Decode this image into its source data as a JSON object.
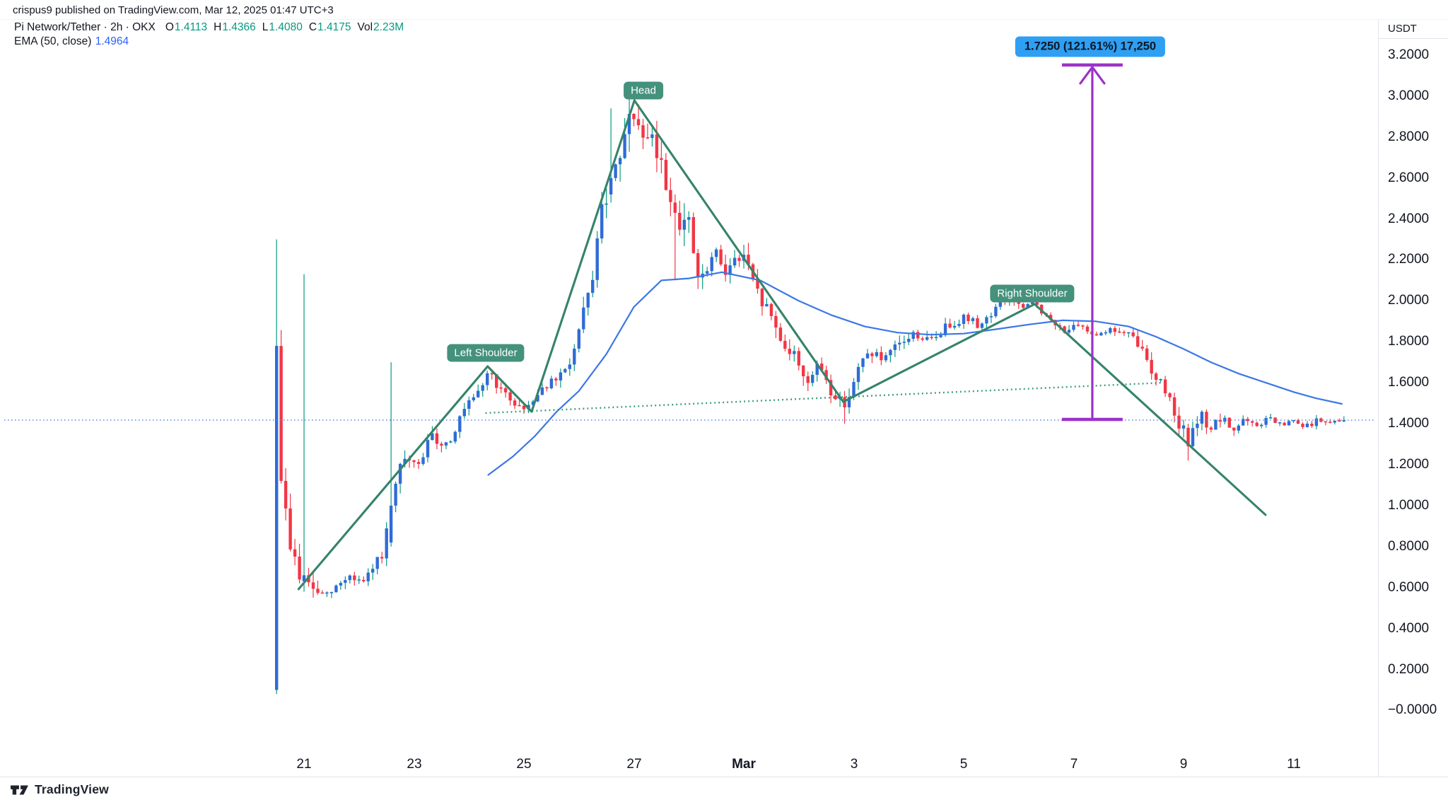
{
  "attribution": "crispus9 published on TradingView.com, Mar 12, 2025 01:47 UTC+3",
  "legend": {
    "symbol_line": "Pi Network/Tether · 2h · OKX",
    "ohlc": [
      {
        "label": "O",
        "value": "1.4113"
      },
      {
        "label": "H",
        "value": "1.4366"
      },
      {
        "label": "L",
        "value": "1.4080"
      },
      {
        "label": "C",
        "value": "1.4175"
      }
    ],
    "volume_label": "Vol",
    "volume_value": "2.23M",
    "ema_label": "EMA (50, close)",
    "ema_value": "1.4964"
  },
  "annotations": {
    "left_shoulder": {
      "text": "Left Shoulder",
      "day": 4.3,
      "price": 1.745
    },
    "head": {
      "text": "Head",
      "day": 7.17,
      "price": 3.027
    },
    "right_shoulder": {
      "text": "Right Shoulder",
      "day": 14.25,
      "price": 2.036
    },
    "measure_label": {
      "text": "1.7250 (121.61%) 17,250",
      "day": 15.3,
      "price": 3.241
    }
  },
  "footer": {
    "logo_text": "TradingView"
  },
  "colors": {
    "text_dark": "#131722",
    "axis_line": "#e0e3eb",
    "up_body": "#2f6bd8",
    "up_wick": "#089981",
    "down": "#f23645",
    "ema_blue": "#3b77e6",
    "price_line_blue": "#5d82e6",
    "trend_green": "#35836b",
    "neckline_green": "#2f9873",
    "purple": "#9c31c9",
    "label_green": "#44917c",
    "measure_bg": "#2e9ff2",
    "legend_teal": "#089981",
    "legend_blue": "#2962ff"
  },
  "chart_data": {
    "type": "candlestick",
    "title": "Pi Network/Tether",
    "timeframe": "2h",
    "exchange": "OKX",
    "quote": "USDT",
    "grid": "none",
    "legend_position": "top-left",
    "last_close": 1.4175,
    "price_line": 1.4175,
    "y_axis": {
      "price_at_top_edge": 3.3727,
      "price_at_bottom_edge": -0.3233,
      "ticks": [
        {
          "label": "3.2000",
          "value": 3.2
        },
        {
          "label": "3.0000",
          "value": 3.0
        },
        {
          "label": "2.8000",
          "value": 2.8
        },
        {
          "label": "2.6000",
          "value": 2.6
        },
        {
          "label": "2.4000",
          "value": 2.4
        },
        {
          "label": "2.2000",
          "value": 2.2
        },
        {
          "label": "2.0000",
          "value": 2.0
        },
        {
          "label": "1.8000",
          "value": 1.8
        },
        {
          "label": "1.6000",
          "value": 1.6
        },
        {
          "label": "1.4000",
          "value": 1.4
        },
        {
          "label": "1.2000",
          "value": 1.2
        },
        {
          "label": "1.0000",
          "value": 1.0
        },
        {
          "label": "0.8000",
          "value": 0.8
        },
        {
          "label": "0.6000",
          "value": 0.6
        },
        {
          "label": "0.4000",
          "value": 0.4
        },
        {
          "label": "0.2000",
          "value": 0.2
        },
        {
          "label": "−0.0000",
          "value": 0.0
        }
      ]
    },
    "x_axis": {
      "day_at_left_edge": -4.531,
      "day_at_right_edge": 20.524,
      "labels": [
        {
          "text": "21",
          "day": 1,
          "bold": false
        },
        {
          "text": "23",
          "day": 3,
          "bold": false
        },
        {
          "text": "25",
          "day": 5,
          "bold": false
        },
        {
          "text": "27",
          "day": 7,
          "bold": false
        },
        {
          "text": "Mar",
          "day": 9,
          "bold": true
        },
        {
          "text": "3",
          "day": 11,
          "bold": false
        },
        {
          "text": "5",
          "day": 13,
          "bold": false
        },
        {
          "text": "7",
          "day": 15,
          "bold": false
        },
        {
          "text": "9",
          "day": 17,
          "bold": false
        },
        {
          "text": "11",
          "day": 19,
          "bold": false
        }
      ]
    },
    "candles": {
      "start_day": 0.5,
      "end_day": 19.9167,
      "per_day": 12,
      "close_path": [
        [
          0.5,
          1.78
        ],
        [
          0.58,
          1.17
        ],
        [
          0.7,
          0.86
        ],
        [
          0.95,
          0.63
        ],
        [
          1.4,
          0.55
        ],
        [
          1.8,
          0.66
        ],
        [
          2.1,
          0.62
        ],
        [
          2.45,
          0.78
        ],
        [
          2.6,
          1.02
        ],
        [
          2.8,
          1.22
        ],
        [
          3.05,
          1.18
        ],
        [
          3.3,
          1.33
        ],
        [
          3.6,
          1.3
        ],
        [
          3.95,
          1.48
        ],
        [
          4.15,
          1.53
        ],
        [
          4.35,
          1.66
        ],
        [
          4.6,
          1.55
        ],
        [
          5.0,
          1.47
        ],
        [
          5.35,
          1.58
        ],
        [
          5.7,
          1.63
        ],
        [
          5.95,
          1.78
        ],
        [
          6.2,
          2.05
        ],
        [
          6.45,
          2.48
        ],
        [
          6.7,
          2.62
        ],
        [
          6.85,
          2.8
        ],
        [
          7.02,
          2.95
        ],
        [
          7.15,
          2.72
        ],
        [
          7.3,
          2.8
        ],
        [
          7.5,
          2.66
        ],
        [
          7.75,
          2.43
        ],
        [
          8.0,
          2.36
        ],
        [
          8.2,
          2.06
        ],
        [
          8.45,
          2.22
        ],
        [
          8.7,
          2.16
        ],
        [
          9.0,
          2.22
        ],
        [
          9.2,
          2.05
        ],
        [
          9.45,
          1.95
        ],
        [
          9.7,
          1.8
        ],
        [
          9.95,
          1.72
        ],
        [
          10.15,
          1.61
        ],
        [
          10.4,
          1.68
        ],
        [
          10.6,
          1.55
        ],
        [
          10.82,
          1.49
        ],
        [
          11.05,
          1.65
        ],
        [
          11.3,
          1.76
        ],
        [
          11.55,
          1.7
        ],
        [
          11.8,
          1.78
        ],
        [
          12.1,
          1.84
        ],
        [
          12.4,
          1.8
        ],
        [
          12.7,
          1.88
        ],
        [
          13.0,
          1.92
        ],
        [
          13.3,
          1.88
        ],
        [
          13.6,
          1.97
        ],
        [
          13.85,
          2.02
        ],
        [
          14.1,
          1.95
        ],
        [
          14.3,
          2.0
        ],
        [
          14.55,
          1.9
        ],
        [
          14.8,
          1.86
        ],
        [
          15.1,
          1.87
        ],
        [
          15.4,
          1.84
        ],
        [
          15.7,
          1.86
        ],
        [
          16.0,
          1.83
        ],
        [
          16.2,
          1.78
        ],
        [
          16.45,
          1.65
        ],
        [
          16.7,
          1.55
        ],
        [
          16.9,
          1.42
        ],
        [
          17.1,
          1.31
        ],
        [
          17.3,
          1.44
        ],
        [
          17.5,
          1.38
        ],
        [
          17.7,
          1.42
        ],
        [
          17.9,
          1.37
        ],
        [
          18.1,
          1.42
        ],
        [
          18.3,
          1.38
        ],
        [
          18.55,
          1.43
        ],
        [
          18.75,
          1.39
        ],
        [
          19.0,
          1.41
        ],
        [
          19.2,
          1.38
        ],
        [
          19.45,
          1.42
        ],
        [
          19.65,
          1.4
        ],
        [
          19.92,
          1.4175
        ]
      ],
      "volatility": [
        [
          0.5,
          0.13
        ],
        [
          0.9,
          0.09
        ],
        [
          1.5,
          0.04
        ],
        [
          2.4,
          0.05
        ],
        [
          2.8,
          0.07
        ],
        [
          3.5,
          0.05
        ],
        [
          4.5,
          0.04
        ],
        [
          5.5,
          0.04
        ],
        [
          6.2,
          0.09
        ],
        [
          6.8,
          0.13
        ],
        [
          7.6,
          0.12
        ],
        [
          8.5,
          0.09
        ],
        [
          9.5,
          0.07
        ],
        [
          10.5,
          0.06
        ],
        [
          11.5,
          0.05
        ],
        [
          12.5,
          0.042
        ],
        [
          13.5,
          0.038
        ],
        [
          14.5,
          0.038
        ],
        [
          15.5,
          0.022
        ],
        [
          16.3,
          0.05
        ],
        [
          17.0,
          0.065
        ],
        [
          17.6,
          0.042
        ],
        [
          18.5,
          0.028
        ],
        [
          19.92,
          0.02
        ]
      ],
      "specials": [
        {
          "d": 0.5,
          "o": 0.1,
          "h": 2.3,
          "l": 0.08,
          "c": 1.78
        },
        {
          "d": 1.0,
          "o": 0.63,
          "h": 2.13,
          "l": 0.58,
          "c": 0.66
        },
        {
          "d": 2.5833,
          "o": 0.82,
          "h": 1.7,
          "l": 0.8,
          "c": 1.0
        },
        {
          "d": 6.5833,
          "o": 2.52,
          "h": 2.94,
          "l": 2.48,
          "c": 2.6
        },
        {
          "d": 7.75,
          "o": 2.48,
          "h": 2.52,
          "l": 2.1,
          "c": 2.43
        },
        {
          "d": 10.8333,
          "o": 1.53,
          "h": 1.56,
          "l": 1.4,
          "c": 1.48
        },
        {
          "d": 17.0833,
          "o": 1.38,
          "h": 1.4,
          "l": 1.22,
          "c": 1.29
        },
        {
          "d": 19.9167,
          "o": 1.4113,
          "h": 1.4366,
          "l": 1.408,
          "c": 1.4175
        }
      ]
    },
    "ema": {
      "period": 50,
      "source": "close",
      "current_value": 1.4964,
      "path": [
        [
          4.35,
          1.15
        ],
        [
          4.8,
          1.24
        ],
        [
          5.2,
          1.34
        ],
        [
          5.6,
          1.46
        ],
        [
          6.0,
          1.56
        ],
        [
          6.5,
          1.74
        ],
        [
          7.0,
          1.97
        ],
        [
          7.5,
          2.1
        ],
        [
          8.0,
          2.11
        ],
        [
          8.6,
          2.14
        ],
        [
          9.3,
          2.1
        ],
        [
          10.0,
          2.0
        ],
        [
          10.6,
          1.93
        ],
        [
          11.2,
          1.875
        ],
        [
          11.8,
          1.845
        ],
        [
          12.4,
          1.835
        ],
        [
          13.0,
          1.84
        ],
        [
          13.6,
          1.862
        ],
        [
          14.2,
          1.885
        ],
        [
          14.8,
          1.905
        ],
        [
          15.4,
          1.9
        ],
        [
          16.0,
          1.875
        ],
        [
          16.5,
          1.825
        ],
        [
          17.0,
          1.765
        ],
        [
          17.5,
          1.7
        ],
        [
          18.0,
          1.645
        ],
        [
          18.5,
          1.6
        ],
        [
          19.0,
          1.555
        ],
        [
          19.4,
          1.525
        ],
        [
          19.88,
          1.497
        ]
      ]
    },
    "trendlines": [
      {
        "from": [
          0.9,
          0.592
        ],
        "to": [
          4.34,
          1.68
        ]
      },
      {
        "from": [
          4.34,
          1.68
        ],
        "to": [
          5.14,
          1.459
        ]
      },
      {
        "from": [
          5.14,
          1.459
        ],
        "to": [
          7.01,
          2.979
        ]
      },
      {
        "from": [
          7.01,
          2.979
        ],
        "to": [
          10.81,
          1.507
        ]
      },
      {
        "from": [
          10.81,
          1.507
        ],
        "to": [
          14.29,
          1.984
        ]
      },
      {
        "from": [
          14.29,
          1.984
        ],
        "to": [
          18.49,
          0.955
        ]
      }
    ],
    "neckline": {
      "from": [
        4.3,
        1.452
      ],
      "to": [
        16.6,
        1.6
      ]
    },
    "measure": {
      "day": 15.34,
      "price_from": 1.421,
      "price_to": 3.152,
      "half_width_days": 0.553,
      "change": "1.7250",
      "change_pct": "121.61%",
      "bars": "17,250"
    }
  }
}
